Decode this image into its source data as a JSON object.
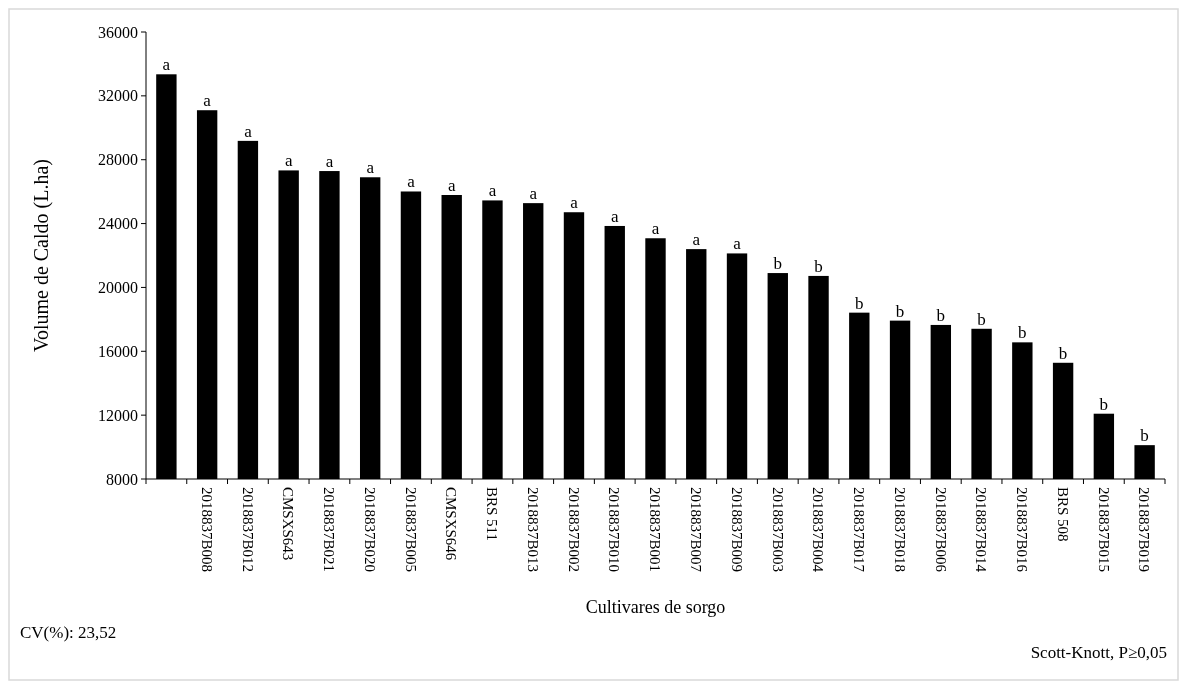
{
  "chart_data": {
    "type": "bar",
    "xlabel": "Cultivares de sorgo",
    "ylabel": "Volume de Caldo (L.ha)",
    "categories": [
      null,
      "2018837B008",
      "2018837B012",
      "CMSXS643",
      "2018837B021",
      "2018837B020",
      "2018837B005",
      "CMSXS646",
      "BRS 511",
      "2018837B013",
      "2018837B002",
      "2018837B010",
      "2018837B001",
      "2018837B007",
      "2018837B009",
      "2018837B003",
      "2018837B004",
      "2018837B017",
      "2018837B018",
      "2018837B006",
      "2018837B014",
      "2018837B016",
      "BRS 508",
      "2018837B015",
      "2018837B019"
    ],
    "values": [
      33350,
      31100,
      29180,
      27330,
      27290,
      26900,
      26010,
      25790,
      25450,
      25280,
      24710,
      23850,
      23080,
      22400,
      22130,
      20900,
      20720,
      18420,
      17920,
      17650,
      17410,
      16560,
      15280,
      12090,
      10120
    ],
    "value_labels": [
      "a",
      "a",
      "a",
      "a",
      "a",
      "a",
      "a",
      "a",
      "a",
      "a",
      "a",
      "a",
      "a",
      "a",
      "a",
      "b",
      "b",
      "b",
      "b",
      "b",
      "b",
      "b",
      "b",
      "b",
      "b"
    ],
    "color": "#000000",
    "ylim": [
      8000,
      36000
    ],
    "yticks": [
      8000,
      12000,
      16000,
      20000,
      24000,
      28000,
      32000,
      36000
    ],
    "annotations": [
      "CV(%): 23,52",
      "Scott-Knott, P≥0,05"
    ]
  }
}
